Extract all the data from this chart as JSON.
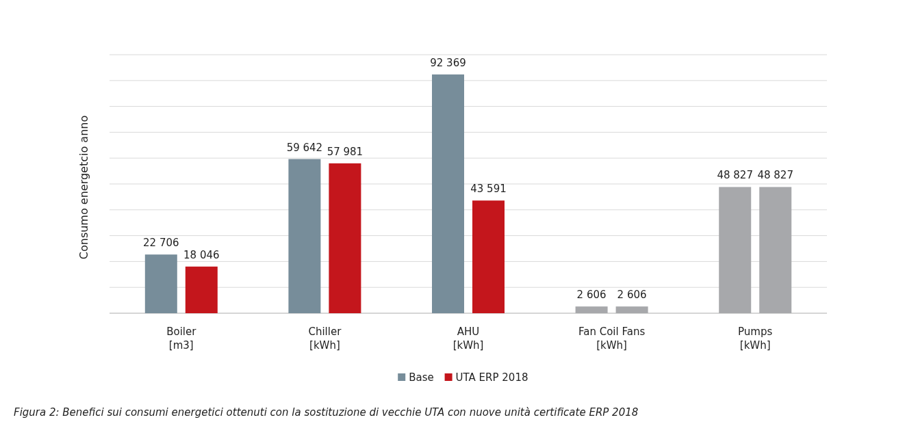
{
  "chart_data": {
    "type": "bar",
    "ylabel": "Consumo energetcio anno",
    "categories": [
      "Boiler\n[m3]",
      "Chiller\n[kWh]",
      "AHU\n[kWh]",
      "Fan Coil Fans\n[kWh]",
      "Pumps\n[kWh]"
    ],
    "series": [
      {
        "name": "Base",
        "color": "#778d9a",
        "colors": [
          "#778d9a",
          "#778d9a",
          "#778d9a",
          "#a7a8ab",
          "#a7a8ab"
        ],
        "values": [
          22706,
          59642,
          92369,
          2606,
          48827
        ],
        "value_labels": [
          "22 706",
          "59 642",
          "92 369",
          "2 606",
          "48 827"
        ]
      },
      {
        "name": "UTA ERP 2018",
        "color": "#c4161c",
        "colors": [
          "#c4161c",
          "#c4161c",
          "#c4161c",
          "#a7a8ab",
          "#a7a8ab"
        ],
        "values": [
          18046,
          57981,
          43591,
          2606,
          48827
        ],
        "value_labels": [
          "18 046",
          "57 981",
          "43 591",
          "2 606",
          "48 827"
        ]
      }
    ],
    "ylim": [
      0,
      100000
    ],
    "yticks": [
      {
        "value": 0,
        "label": null
      },
      {
        "value": 10000,
        "label": null
      },
      {
        "value": 20000,
        "label": null
      },
      {
        "value": 30000,
        "label": null
      },
      {
        "value": 40000,
        "label": null
      },
      {
        "value": 50000,
        "label": null
      },
      {
        "value": 60000,
        "label": null
      },
      {
        "value": 70000,
        "label": null
      },
      {
        "value": 80000,
        "label": null
      },
      {
        "value": 90000,
        "label": null
      },
      {
        "value": 100000,
        "label": null
      }
    ],
    "tick_labels": "x",
    "grid": "y",
    "legend": "bottom",
    "annotations": [
      "Figura 2: Benefici sui consumi energetici ottenuti con la sostituzione di vecchie UTA con nuove unità certificate ERP 2018"
    ]
  }
}
